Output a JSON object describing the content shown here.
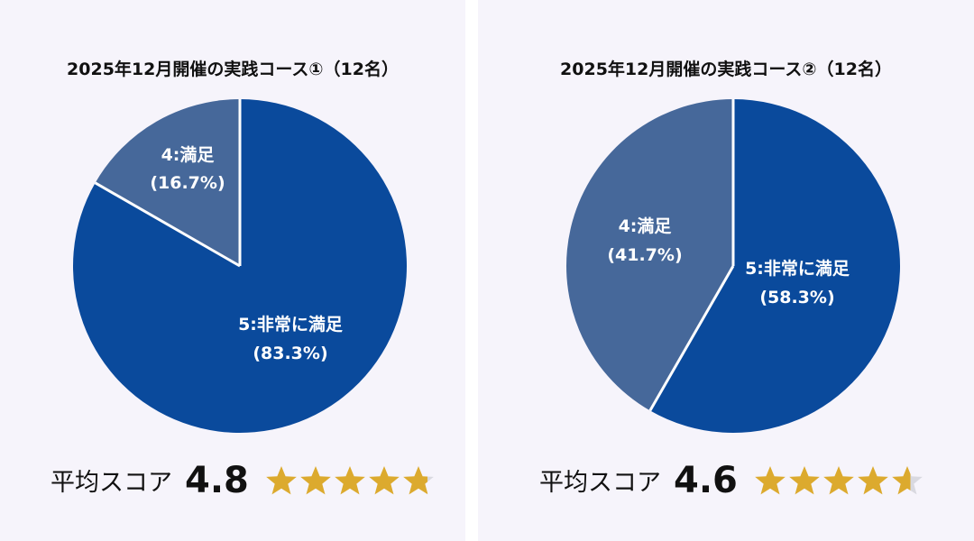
{
  "colors": {
    "background": "#f6f4fb",
    "slice_very_satisfied": "#0a4a9c",
    "slice_satisfied": "#46689a",
    "slice_divider": "#ffffff",
    "star_gold": "#dcaa2e",
    "star_empty": "#d9d9e0",
    "text": "#111111"
  },
  "panels": [
    {
      "title": "2025年12月開催の実践コース①（12名）",
      "slices": [
        {
          "label": "5:非常に満足",
          "pct_text": "(83.3%)"
        },
        {
          "label": "4:満足",
          "pct_text": "(16.7%)"
        }
      ],
      "score_label": "平均スコア",
      "score_value": "4.8",
      "stars_icon": "star-rating-icon"
    },
    {
      "title": "2025年12月開催の実践コース②（12名）",
      "slices": [
        {
          "label": "5:非常に満足",
          "pct_text": "(58.3%)"
        },
        {
          "label": "4:満足",
          "pct_text": "(41.7%)"
        }
      ],
      "score_label": "平均スコア",
      "score_value": "4.6",
      "stars_icon": "star-rating-icon"
    }
  ],
  "chart_data": [
    {
      "type": "pie",
      "title": "2025年12月開催の実践コース①（12名）",
      "categories": [
        "5:非常に満足",
        "4:満足"
      ],
      "values": [
        83.3,
        16.7
      ],
      "unit": "%",
      "respondents": 12,
      "average_score": 4.8,
      "max_score": 5,
      "legend": "none (labels inside slices)"
    },
    {
      "type": "pie",
      "title": "2025年12月開催の実践コース②（12名）",
      "categories": [
        "5:非常に満足",
        "4:満足"
      ],
      "values": [
        58.3,
        41.7
      ],
      "unit": "%",
      "respondents": 12,
      "average_score": 4.6,
      "max_score": 5,
      "legend": "none (labels inside slices)"
    }
  ]
}
